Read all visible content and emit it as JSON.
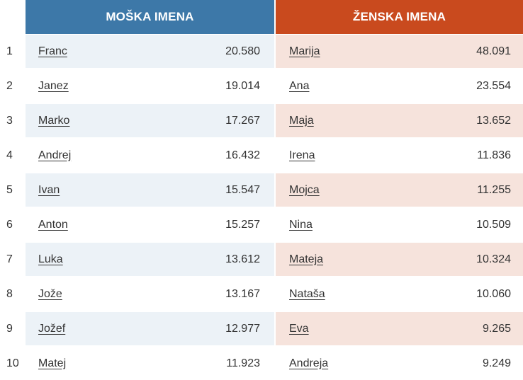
{
  "headers": {
    "male": "MOŠKA IMENA",
    "female": "ŽENSKA IMENA"
  },
  "colors": {
    "male_header": "#3d78a8",
    "female_header": "#c94a1e",
    "male_row_shade": "#ecf2f7",
    "female_row_shade": "#f6e3dc"
  },
  "rows": [
    {
      "rank": "1",
      "male_name": "Franc",
      "male_count": "20.580",
      "female_name": "Marija",
      "female_count": "48.091"
    },
    {
      "rank": "2",
      "male_name": "Janez",
      "male_count": "19.014",
      "female_name": "Ana",
      "female_count": "23.554"
    },
    {
      "rank": "3",
      "male_name": "Marko",
      "male_count": "17.267",
      "female_name": "Maja",
      "female_count": "13.652"
    },
    {
      "rank": "4",
      "male_name": "Andrej",
      "male_count": "16.432",
      "female_name": "Irena",
      "female_count": "11.836"
    },
    {
      "rank": "5",
      "male_name": "Ivan",
      "male_count": "15.547",
      "female_name": "Mojca",
      "female_count": "11.255"
    },
    {
      "rank": "6",
      "male_name": "Anton",
      "male_count": "15.257",
      "female_name": "Nina",
      "female_count": "10.509"
    },
    {
      "rank": "7",
      "male_name": "Luka",
      "male_count": "13.612",
      "female_name": "Mateja",
      "female_count": "10.324"
    },
    {
      "rank": "8",
      "male_name": "Jože",
      "male_count": "13.167",
      "female_name": "Nataša",
      "female_count": "10.060"
    },
    {
      "rank": "9",
      "male_name": "Jožef",
      "male_count": "12.977",
      "female_name": "Eva",
      "female_count": "9.265"
    },
    {
      "rank": "10",
      "male_name": "Matej",
      "male_count": "11.923",
      "female_name": "Andreja",
      "female_count": "9.249"
    }
  ]
}
